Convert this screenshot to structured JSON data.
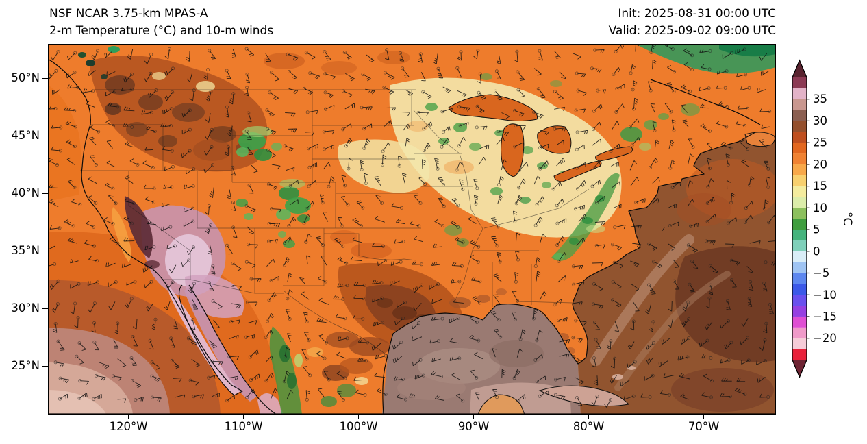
{
  "header": {
    "model": "NSF NCAR 3.75-km MPAS-A",
    "field": "2-m Temperature (°C) and 10-m winds",
    "init": "Init: 2025-08-31 00:00 UTC",
    "valid": "Valid: 2025-09-02 09:00 UTC"
  },
  "axes": {
    "lat_ticks": [
      {
        "label": "50°N",
        "lat": 50
      },
      {
        "label": "45°N",
        "lat": 45
      },
      {
        "label": "40°N",
        "lat": 40
      },
      {
        "label": "35°N",
        "lat": 35
      },
      {
        "label": "30°N",
        "lat": 30
      },
      {
        "label": "25°N",
        "lat": 25
      }
    ],
    "lon_ticks": [
      {
        "label": "120°W",
        "lon": -120
      },
      {
        "label": "110°W",
        "lon": -110
      },
      {
        "label": "100°W",
        "lon": -100
      },
      {
        "label": "90°W",
        "lon": -90
      },
      {
        "label": "80°W",
        "lon": -80
      },
      {
        "label": "70°W",
        "lon": -70
      }
    ]
  },
  "colorbar": {
    "unit": "°C",
    "tick_values": [
      35,
      30,
      25,
      20,
      15,
      10,
      5,
      0,
      -5,
      -10,
      -15,
      -20
    ],
    "tick_labels": [
      "35",
      "30",
      "25",
      "20",
      "15",
      "10",
      "5",
      "0",
      "−5",
      "−10",
      "−15",
      "−20"
    ],
    "min": -25,
    "max": 40,
    "over_color": "#59232f",
    "under_color": "#6e2433",
    "segments": [
      {
        "from": -25,
        "to": -22.5,
        "color": "#e8213a"
      },
      {
        "from": -22.5,
        "to": -20,
        "color": "#f6ccd8"
      },
      {
        "from": -20,
        "to": -17.5,
        "color": "#f09ac9"
      },
      {
        "from": -17.5,
        "to": -15,
        "color": "#df4fd3"
      },
      {
        "from": -15,
        "to": -12.5,
        "color": "#9640e2"
      },
      {
        "from": -12.5,
        "to": -10,
        "color": "#6a50ee"
      },
      {
        "from": -10,
        "to": -7.5,
        "color": "#3c59e8"
      },
      {
        "from": -7.5,
        "to": -5,
        "color": "#5d87ef"
      },
      {
        "from": -5,
        "to": -2.5,
        "color": "#9fc4f3"
      },
      {
        "from": -2.5,
        "to": 0,
        "color": "#d9edf7"
      },
      {
        "from": 0,
        "to": 2.5,
        "color": "#7fd0ba"
      },
      {
        "from": 2.5,
        "to": 5,
        "color": "#45b47d"
      },
      {
        "from": 5,
        "to": 7.5,
        "color": "#3f9e3e"
      },
      {
        "from": 7.5,
        "to": 10,
        "color": "#8cc05d"
      },
      {
        "from": 10,
        "to": 12.5,
        "color": "#dcedaa"
      },
      {
        "from": 12.5,
        "to": 15,
        "color": "#f4ec9e"
      },
      {
        "from": 15,
        "to": 17.5,
        "color": "#f8d06e"
      },
      {
        "from": 17.5,
        "to": 20,
        "color": "#f8a849"
      },
      {
        "from": 20,
        "to": 22.5,
        "color": "#f08232"
      },
      {
        "from": 22.5,
        "to": 25,
        "color": "#e2671f"
      },
      {
        "from": 25,
        "to": 27.5,
        "color": "#bf4f1f"
      },
      {
        "from": 27.5,
        "to": 30,
        "color": "#94502e"
      },
      {
        "from": 30,
        "to": 32.5,
        "color": "#8b5f51"
      },
      {
        "from": 32.5,
        "to": 35,
        "color": "#c9978f"
      },
      {
        "from": 35,
        "to": 37.5,
        "color": "#e3b3c8"
      },
      {
        "from": 37.5,
        "to": 40,
        "color": "#8c3a54"
      }
    ]
  }
}
